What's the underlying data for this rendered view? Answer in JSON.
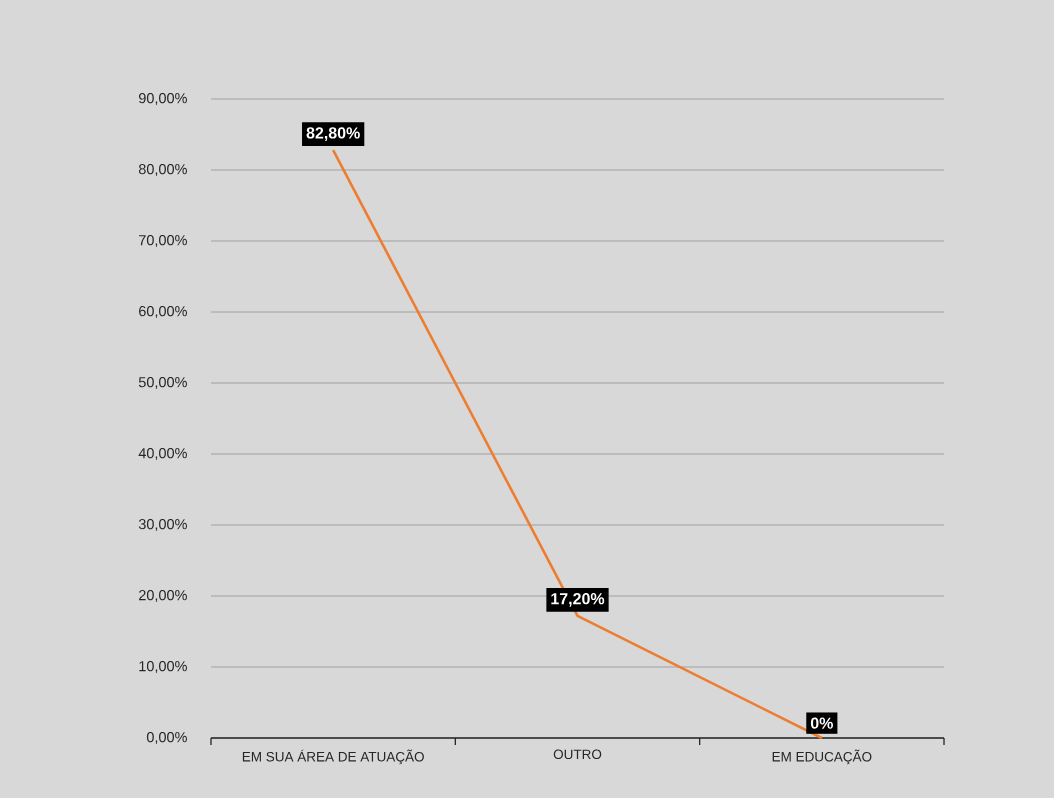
{
  "chart_data": {
    "type": "line",
    "categories": [
      "EM SUA ÁREA DE ATUAÇÃO",
      "OUTRO",
      "EM EDUCAÇÃO"
    ],
    "series": [
      {
        "color": "#ed7d31",
        "values": [
          82.8,
          17.2,
          0
        ],
        "value_labels": [
          "82,80%",
          "17,20%",
          "0%"
        ]
      }
    ],
    "ylim": [
      0,
      90
    ],
    "yticks": [
      {
        "value": 0,
        "label": "0,00%"
      },
      {
        "value": 10,
        "label": "10,00%"
      },
      {
        "value": 20,
        "label": "20,00%"
      },
      {
        "value": 30,
        "label": "30,00%"
      },
      {
        "value": 40,
        "label": "40,00%"
      },
      {
        "value": 50,
        "label": "50,00%"
      },
      {
        "value": 60,
        "label": "60,00%"
      },
      {
        "value": 70,
        "label": "70,00%"
      },
      {
        "value": 80,
        "label": "80,00%"
      },
      {
        "value": 90,
        "label": "90,00%"
      }
    ],
    "grid": "y",
    "marker": "none",
    "line_style": "solid"
  }
}
